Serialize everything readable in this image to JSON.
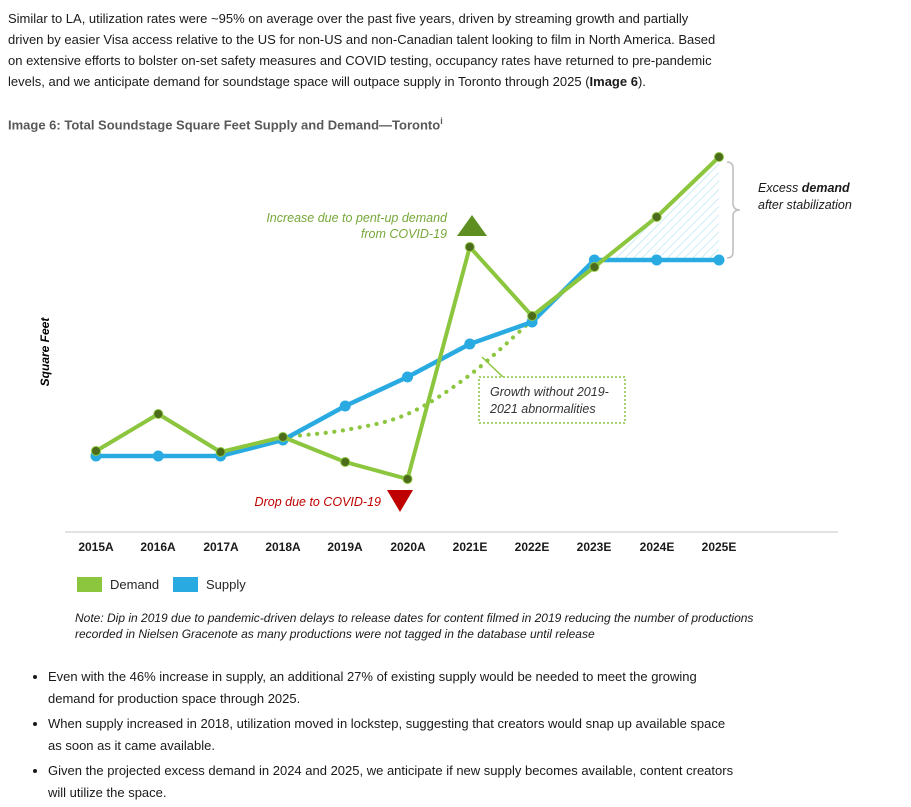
{
  "intro": {
    "lines123": "Similar to LA, utilization rates were ~95% on average over the past five years, driven by streaming growth and partially\ndriven by easier Visa access relative to the US for non-US and non-Canadian talent looking to film in North America. Based\non extensive efforts to bolster on-set safety measures and COVID testing, occupancy rates have returned to pre-pandemic\n",
    "line4_pre": "levels, and we anticipate demand for soundstage space will outpace supply in Toronto through 2025 (",
    "line4_bold": "Image 6",
    "line4_post": ")."
  },
  "figure": {
    "title": "Image 6: Total Soundstage Square Feet Supply and Demand—Toronto",
    "footnote_marker": "i"
  },
  "chart_data": {
    "type": "line",
    "title": "Total Soundstage Square Feet Supply and Demand—Toronto",
    "xlabel": "",
    "ylabel": "Square Feet",
    "y_axis_note": "No numeric y-axis ticks shown; values are relative index estimates read from pixel positions",
    "grid": false,
    "legend_position": "bottom-left",
    "categories": [
      "2015A",
      "2016A",
      "2017A",
      "2018A",
      "2019A",
      "2020A",
      "2021E",
      "2022E",
      "2023E",
      "2024E",
      "2025E"
    ],
    "series": [
      {
        "name": "Demand",
        "color": "#8CC63F",
        "marker_color": "#4C6B1B",
        "values": [
          81,
          118,
          80,
          95,
          70,
          53,
          285,
          216,
          265,
          315,
          375
        ]
      },
      {
        "name": "Supply",
        "color": "#29ABE2",
        "marker_color": "#29ABE2",
        "values": [
          76,
          76,
          76,
          92,
          126,
          155,
          188,
          210,
          272,
          272,
          272
        ]
      }
    ],
    "trend_dotted": {
      "name": "Growth without 2019-2021 abnormalities",
      "x_from": "2018A",
      "x_to": "2022E",
      "start_index": 3,
      "values": [
        95,
        102,
        118,
        157,
        212
      ],
      "color": "#8CC63F"
    },
    "excess_area": {
      "label": "Excess demand after stabilization",
      "from": "2023E",
      "to": "2025E",
      "hatch_color": "#AEE2F2"
    }
  },
  "annotations": {
    "pent_up": {
      "line1": "Increase due to pent-up demand",
      "line2": "from COVID-19",
      "text_color": "#76A838",
      "arrow_color": "#5E8E22"
    },
    "drop": {
      "text": "Drop due to COVID-19",
      "text_color": "#C00000",
      "arrow_color": "#C00000"
    },
    "excess": {
      "line1_normal": "Excess ",
      "line1_bold": "demand",
      "line2": "after stabilization",
      "text_color": "#1a1a1a",
      "bracket_color": "#C0C0C0"
    },
    "growth_box": {
      "line1": "Growth without 2019-",
      "line2": "2021 abnormalities",
      "border_color": "#8CC63F",
      "text_color": "#333333"
    }
  },
  "note": "Note: Dip in 2019 due to pandemic-driven delays to release dates for content filmed in 2019 reducing the number of productions\nrecorded in Nielsen Gracenote as many productions were not tagged in the database until release",
  "bullets": [
    "Even with the 46% increase in supply, an additional 27% of existing supply would be needed to meet the growing\ndemand for production space through 2025.",
    "When supply increased in 2018, utilization moved in lockstep, suggesting that creators would snap up available space\nas soon as it came available.",
    "Given the projected excess demand in 2024 and 2025, we anticipate if new supply becomes available, content creators\nwill utilize the space."
  ]
}
